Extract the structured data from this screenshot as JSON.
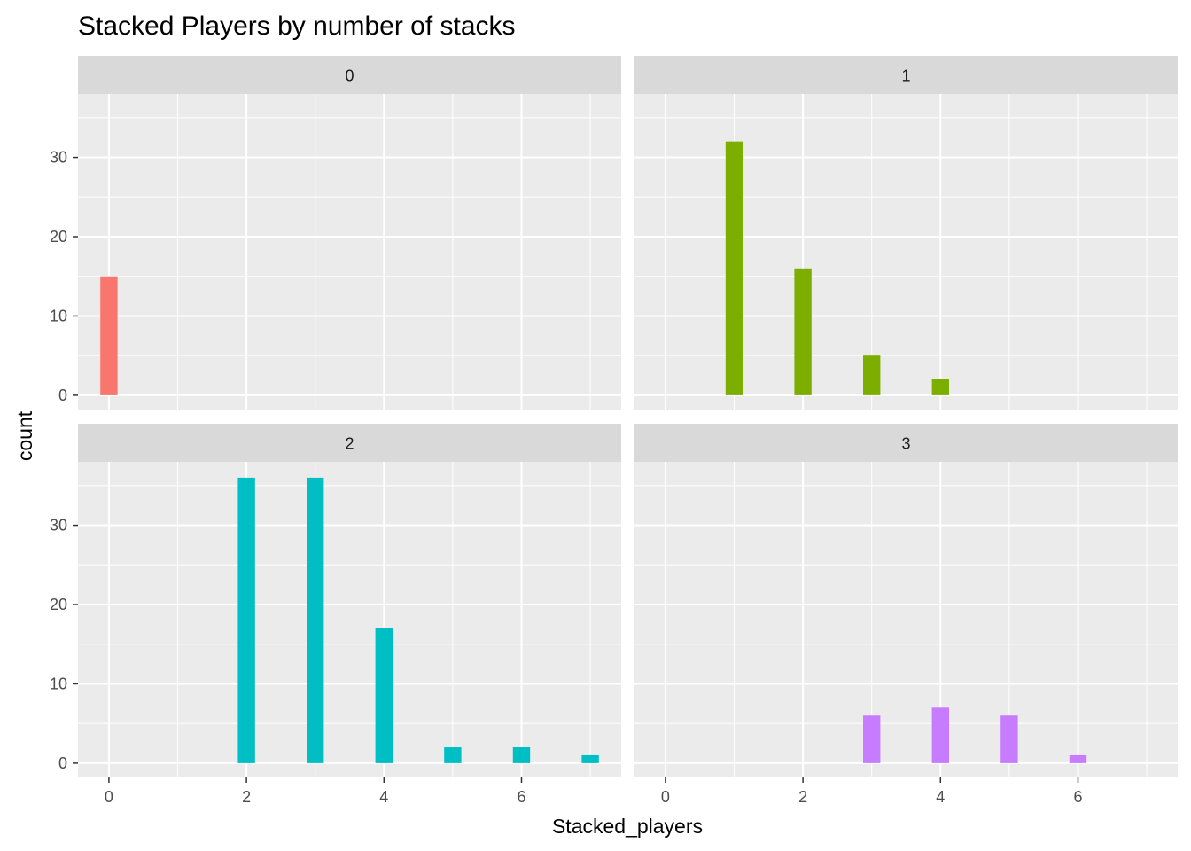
{
  "chart_data": {
    "type": "bar",
    "title": "Stacked Players by number of stacks",
    "xlabel": "Stacked_players",
    "ylabel": "count",
    "xlim": [
      -0.45,
      7.45
    ],
    "ylim": [
      -1.8,
      38
    ],
    "x_ticks": [
      0,
      2,
      4,
      6
    ],
    "y_ticks": [
      0,
      10,
      20,
      30
    ],
    "grid": true,
    "legend": "none",
    "facets": [
      {
        "label": "0",
        "color": "#F8766D",
        "bars": [
          {
            "x": 0,
            "y": 15
          }
        ]
      },
      {
        "label": "1",
        "color": "#7CAE00",
        "bars": [
          {
            "x": 1,
            "y": 32
          },
          {
            "x": 2,
            "y": 16
          },
          {
            "x": 3,
            "y": 5
          },
          {
            "x": 4,
            "y": 2
          }
        ]
      },
      {
        "label": "2",
        "color": "#00BFC4",
        "bars": [
          {
            "x": 2,
            "y": 36
          },
          {
            "x": 3,
            "y": 36
          },
          {
            "x": 4,
            "y": 17
          },
          {
            "x": 5,
            "y": 2
          },
          {
            "x": 6,
            "y": 2
          },
          {
            "x": 7,
            "y": 1
          }
        ]
      },
      {
        "label": "3",
        "color": "#C77CFF",
        "bars": [
          {
            "x": 3,
            "y": 6
          },
          {
            "x": 4,
            "y": 7
          },
          {
            "x": 5,
            "y": 6
          },
          {
            "x": 6,
            "y": 1
          }
        ]
      }
    ]
  }
}
